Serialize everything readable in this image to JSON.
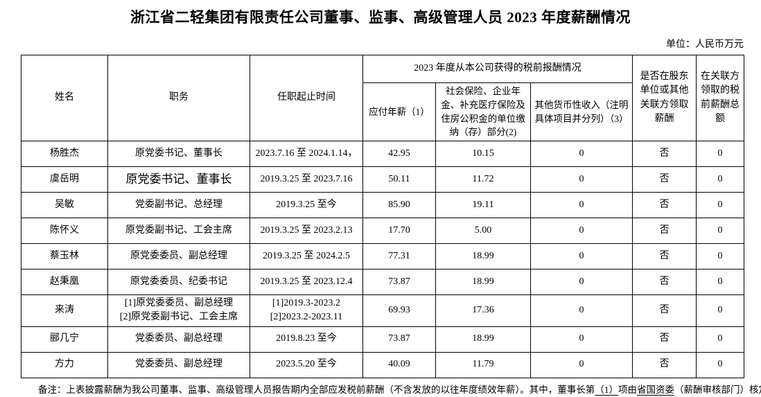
{
  "title": "浙江省二轻集团有限责任公司董事、监事、高级管理人员 2023 年度薪酬情况",
  "unit_label": "单位：人民币万元",
  "table": {
    "headers": {
      "name": "姓名",
      "position": "职务",
      "term": "任职起止时间",
      "comp_group": "2023 年度从本公司获得的税前报酬情况",
      "salary": "应付年薪（1）",
      "insurance": "社会保险、企业年金、补充医疗保险及住房公积金的单位缴纳（存）部分(2)",
      "other_income": "其他货币性收入（注明具体项目并分列）（3）",
      "related_party": "是否在股东单位或其他关联方领取薪酬",
      "related_total": "在关联方领取的税前薪酬总额"
    },
    "rows": [
      {
        "name": "杨胜杰",
        "position": "原党委书记、董事长",
        "term": "2023.7.16 至 2024.1.14，",
        "salary": "42.95",
        "insurance": "10.15",
        "other": "0",
        "related": "否",
        "related_total": "0",
        "position_large": false
      },
      {
        "name": "虞岳明",
        "position": "原党委书记、董事长",
        "term": "2019.3.25 至 2023.7.16",
        "salary": "50.11",
        "insurance": "11.72",
        "other": "0",
        "related": "否",
        "related_total": "0",
        "position_large": true
      },
      {
        "name": "吴敏",
        "position": "党委副书记、总经理",
        "term": "2019.3.25 至今",
        "salary": "85.90",
        "insurance": "19.11",
        "other": "0",
        "related": "否",
        "related_total": "0",
        "position_large": false
      },
      {
        "name": "陈怀义",
        "position": "原党委副书记、工会主席",
        "term": "2019.3.25 至 2023.2.13",
        "salary": "17.70",
        "insurance": "5.00",
        "other": "0",
        "related": "否",
        "related_total": "0",
        "position_large": false
      },
      {
        "name": "蔡玉林",
        "position": "原党委委员、副总经理",
        "term": "2019.3.25 至 2024.2.5",
        "salary": "77.31",
        "insurance": "18.99",
        "other": "0",
        "related": "否",
        "related_total": "0",
        "position_large": false
      },
      {
        "name": "赵秉凰",
        "position": "原党委委员、纪委书记",
        "term": "2019.3.25 至 2023.12.4",
        "salary": "73.87",
        "insurance": "18.99",
        "other": "0",
        "related": "否",
        "related_total": "0",
        "position_large": false
      },
      {
        "name": "来涛",
        "position": "[1]原党委委员、副总经理\n[2]原党委副书记、工会主席",
        "term": "[1]2019.3-2023.2\n[2]2023.2-2023.11",
        "salary": "69.93",
        "insurance": "17.36",
        "other": "0",
        "related": "否",
        "related_total": "0",
        "position_large": false
      },
      {
        "name": "郦几宁",
        "position": "党委委员、副总经理",
        "term": "2019.8.23 至今",
        "salary": "73.87",
        "insurance": "18.99",
        "other": "0",
        "related": "否",
        "related_total": "0",
        "position_large": false
      },
      {
        "name": "方力",
        "position": "党委委员、副总经理",
        "term": "2023.5.20 至今",
        "salary": "40.09",
        "insurance": "11.79",
        "other": "0",
        "related": "否",
        "related_total": "0",
        "position_large": false
      }
    ]
  },
  "remark": {
    "parts": [
      {
        "text": "备注：上表披露薪酬为我公司董事、监事、高级管理人员报告期内全部应发税前薪酬（不含发放的以往年度绩效年薪）。其中，董事长第",
        "underline": false
      },
      {
        "text": "（1）",
        "underline": true
      },
      {
        "text": "项由",
        "underline": false
      },
      {
        "text": "省国资委",
        "underline": true
      },
      {
        "text": "（薪酬审核部门）核定。",
        "underline": false
      }
    ]
  }
}
